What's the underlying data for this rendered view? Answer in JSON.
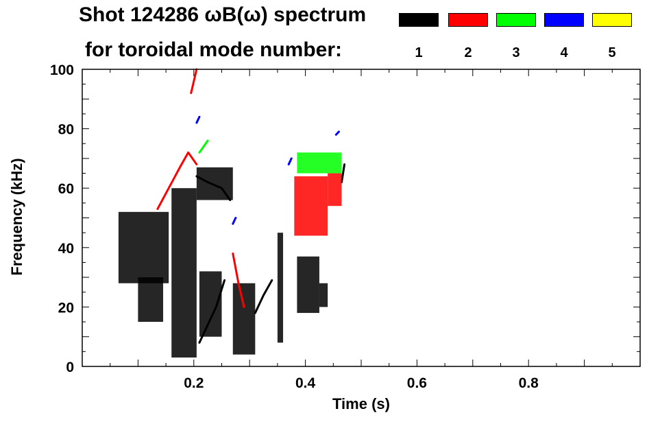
{
  "chart_data": {
    "type": "heatmap",
    "title_line1": "Shot 124286 ωB(ω) spectrum",
    "title_line2": "for toroidal mode number:",
    "xlabel": "Time (s)",
    "ylabel": "Frequency (kHz)",
    "xlim": [
      0.0,
      1.0
    ],
    "ylim": [
      0,
      100
    ],
    "x_ticks": [
      0.2,
      0.4,
      0.6,
      0.8
    ],
    "y_ticks": [
      0,
      20,
      40,
      60,
      80,
      100
    ],
    "x_tick_labels": [
      "0.2",
      "0.4",
      "0.6",
      "0.8"
    ],
    "y_tick_labels": [
      "0",
      "20",
      "40",
      "60",
      "80",
      "100"
    ],
    "legend": [
      {
        "label": "1",
        "color": "#000000"
      },
      {
        "label": "2",
        "color": "#ff0000"
      },
      {
        "label": "3",
        "color": "#00ff00"
      },
      {
        "label": "4",
        "color": "#0000ff"
      },
      {
        "label": "5",
        "color": "#ffff00"
      }
    ],
    "legend_placement": "top-right",
    "series": [
      {
        "name": "1",
        "color": "#000000",
        "regions": [
          {
            "t": [
              0.065,
              0.155
            ],
            "f": [
              28,
              52
            ]
          },
          {
            "t": [
              0.1,
              0.145
            ],
            "f": [
              15,
              30
            ]
          },
          {
            "t": [
              0.16,
              0.205
            ],
            "f": [
              3,
              60
            ]
          },
          {
            "t": [
              0.205,
              0.27
            ],
            "f": [
              56,
              67
            ]
          },
          {
            "t": [
              0.21,
              0.25
            ],
            "f": [
              10,
              32
            ]
          },
          {
            "t": [
              0.27,
              0.31
            ],
            "f": [
              4,
              28
            ]
          },
          {
            "t": [
              0.35,
              0.36
            ],
            "f": [
              8,
              45
            ]
          },
          {
            "t": [
              0.385,
              0.425
            ],
            "f": [
              18,
              37
            ]
          },
          {
            "t": [
              0.425,
              0.44
            ],
            "f": [
              20,
              28
            ]
          }
        ],
        "tracks": [
          {
            "t": [
              0.205,
              0.225,
              0.25,
              0.265
            ],
            "f": [
              64,
              62,
              60,
              56
            ]
          },
          {
            "t": [
              0.21,
              0.225,
              0.24,
              0.255
            ],
            "f": [
              8,
              14,
              20,
              29
            ]
          },
          {
            "t": [
              0.31,
              0.325,
              0.34
            ],
            "f": [
              18,
              24,
              29
            ]
          },
          {
            "t": [
              0.465,
              0.47
            ],
            "f": [
              62,
              68
            ]
          }
        ]
      },
      {
        "name": "2",
        "color": "#ff0000",
        "regions": [
          {
            "t": [
              0.38,
              0.44
            ],
            "f": [
              44,
              64
            ]
          },
          {
            "t": [
              0.44,
              0.465
            ],
            "f": [
              54,
              65
            ]
          }
        ],
        "tracks": [
          {
            "t": [
              0.135,
              0.155,
              0.175,
              0.19,
              0.205
            ],
            "f": [
              53,
              60,
              67,
              72,
              68
            ]
          },
          {
            "t": [
              0.195,
              0.2,
              0.205
            ],
            "f": [
              92,
              96,
              100
            ]
          },
          {
            "t": [
              0.27,
              0.28,
              0.29
            ],
            "f": [
              38,
              28,
              20
            ]
          }
        ]
      },
      {
        "name": "3",
        "color": "#00ff00",
        "regions": [
          {
            "t": [
              0.385,
              0.465
            ],
            "f": [
              65,
              72
            ]
          }
        ],
        "tracks": [
          {
            "t": [
              0.21,
              0.225
            ],
            "f": [
              72,
              76
            ]
          }
        ]
      },
      {
        "name": "4",
        "color": "#0000ff",
        "regions": [],
        "tracks": [
          {
            "t": [
              0.205,
              0.21
            ],
            "f": [
              82,
              84
            ]
          },
          {
            "t": [
              0.37,
              0.375
            ],
            "f": [
              68,
              70
            ]
          },
          {
            "t": [
              0.455,
              0.46
            ],
            "f": [
              78,
              79
            ]
          },
          {
            "t": [
              0.27,
              0.275
            ],
            "f": [
              48,
              50
            ]
          }
        ]
      },
      {
        "name": "5",
        "color": "#ffff00",
        "regions": [],
        "tracks": []
      }
    ]
  }
}
